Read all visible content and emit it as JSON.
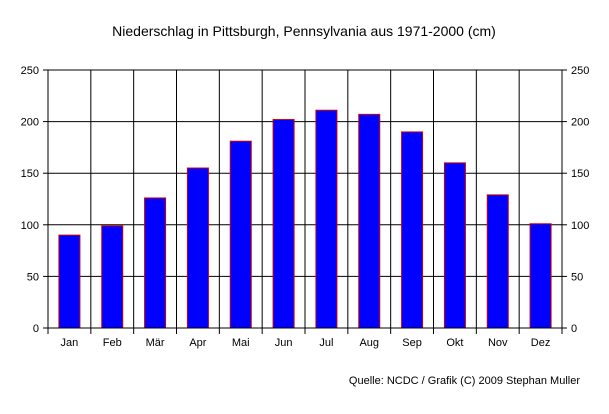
{
  "chart_data": {
    "type": "bar",
    "title": "Niederschlag in Pittsburgh, Pennsylvania aus 1971-2000 (cm)",
    "source": "Quelle: NCDC / Grafik (C) 2009 Stephan Muller",
    "categories": [
      "Jan",
      "Feb",
      "Mär",
      "Apr",
      "Mai",
      "Jun",
      "Jul",
      "Aug",
      "Sep",
      "Okt",
      "Nov",
      "Dez"
    ],
    "values": [
      90,
      99,
      126,
      155,
      181,
      202,
      211,
      207,
      190,
      160,
      129,
      101
    ],
    "ylim": [
      0,
      250
    ],
    "yticks": [
      0,
      50,
      100,
      150,
      200,
      250
    ],
    "grid": true,
    "right_axis": true,
    "colors": {
      "bar_fill": "#0000ff",
      "bar_stroke": "#cc0000",
      "grid": "#000000"
    }
  }
}
